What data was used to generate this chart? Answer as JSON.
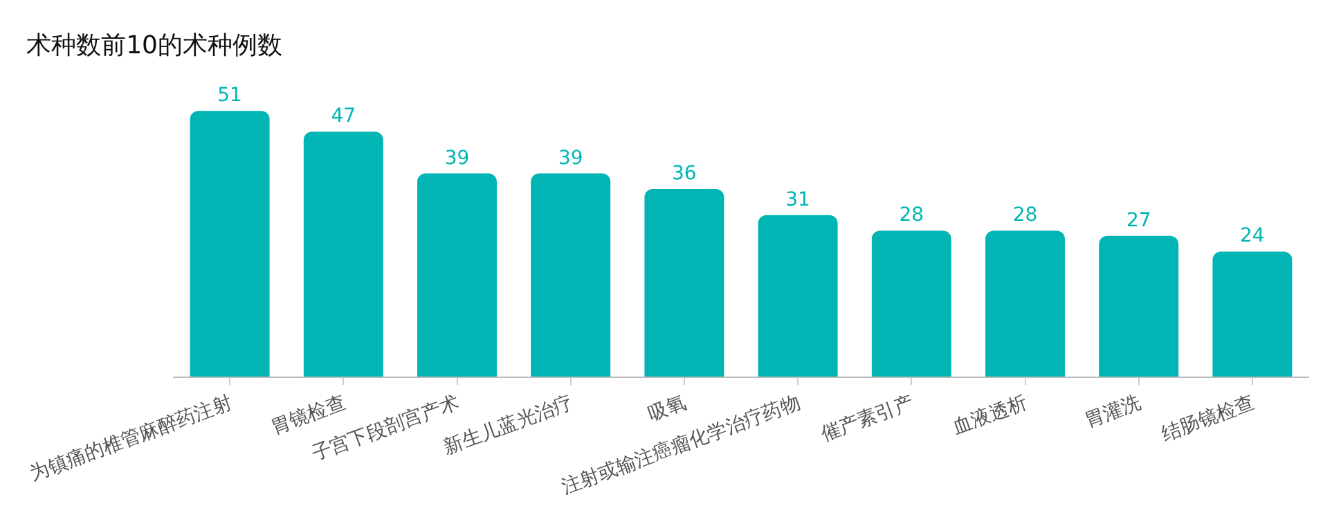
{
  "chart_data": {
    "type": "bar",
    "title": "术种数前10的术种例数",
    "categories": [
      "为镇痛的椎管麻醉药注射",
      "胃镜检查",
      "子宫下段剖宫产术",
      "新生儿蓝光治疗",
      "吸氧",
      "注射或输注癌瘤化学治疗药物",
      "催产素引产",
      "血液透析",
      "胃灌洗",
      "结肠镜检查"
    ],
    "values": [
      51,
      47,
      39,
      39,
      36,
      31,
      28,
      28,
      27,
      24
    ],
    "color": "#00b5b3",
    "data_labels": true,
    "legend": false,
    "tick_labels": "x"
  }
}
